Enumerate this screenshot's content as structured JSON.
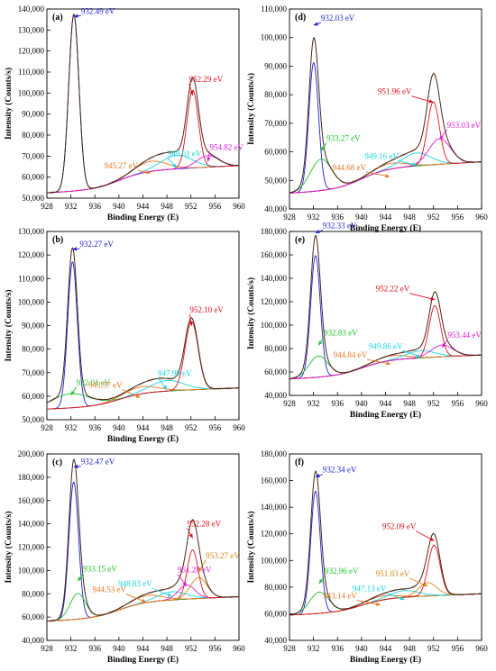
{
  "chart_data": [
    {
      "type": "line",
      "panel_label": "(a)",
      "xlabel": "Binding Energy (E)",
      "ylabel": "Intensity (Counts/s)",
      "xlim": [
        928,
        960
      ],
      "ylim": [
        50000,
        140000
      ],
      "x_ticks": [
        "928",
        "932",
        "936",
        "940",
        "944",
        "948",
        "952",
        "956",
        "960"
      ],
      "y_ticks": [
        "50,000",
        "60,000",
        "70,000",
        "80,000",
        "90,000",
        "100,000",
        "110,000",
        "120,000",
        "130,000",
        "140,000"
      ],
      "peaks": [
        {
          "label": "932.49 eV",
          "x": 932.49,
          "y": 136000,
          "color": "#1f1fd6",
          "w": 0.85,
          "h": 84000
        },
        {
          "label": "945.27 eV",
          "x": 945.27,
          "y": 61500,
          "color": "#e87722",
          "w": 2.6,
          "h": 4800
        },
        {
          "label": "949.61 eV",
          "x": 949.61,
          "y": 64000,
          "color": "#19d3e0",
          "w": 2.6,
          "h": 6500
        },
        {
          "label": "952.29 eV",
          "x": 952.29,
          "y": 98500,
          "color": "#e0101b",
          "w": 0.95,
          "h": 37000
        },
        {
          "label": "954.82 eV",
          "x": 954.82,
          "y": 67000,
          "color": "#e01bd6",
          "w": 1.8,
          "h": 5500
        }
      ],
      "baseline": {
        "start": 52500,
        "end": 65500
      }
    },
    {
      "type": "line",
      "panel_label": "(b)",
      "xlabel": "Binding Energy (E)",
      "ylabel": "Intensity (Counts/s)",
      "xlim": [
        928,
        960
      ],
      "ylim": [
        50000,
        130000
      ],
      "x_ticks": [
        "928",
        "932",
        "936",
        "940",
        "944",
        "948",
        "952",
        "956",
        "960"
      ],
      "y_ticks": [
        "50,000",
        "60,000",
        "70,000",
        "80,000",
        "90,000",
        "100,000",
        "110,000",
        "120,000",
        "130,000"
      ],
      "peaks": [
        {
          "label": "932.27 eV",
          "x": 932.27,
          "y": 122000,
          "color": "#1f1fd6",
          "w": 0.8,
          "h": 62000
        },
        {
          "label": "932.01 eV",
          "x": 932.01,
          "y": 60000,
          "color": "#22c22e",
          "w": 3.2,
          "h": 6000
        },
        {
          "label": "943.57 eV",
          "x": 943.57,
          "y": 59000,
          "color": "#e87722",
          "w": 2.8,
          "h": 3000
        },
        {
          "label": "947.99 eV",
          "x": 947.99,
          "y": 62500,
          "color": "#19d3e0",
          "w": 2.8,
          "h": 4500
        },
        {
          "label": "952.10 eV",
          "x": 952.1,
          "y": 89500,
          "color": "#e0101b",
          "w": 1.1,
          "h": 29000
        }
      ],
      "baseline": {
        "start": 54500,
        "end": 63500
      }
    },
    {
      "type": "line",
      "panel_label": "(c)",
      "xlabel": "Binding Energy (E)",
      "ylabel": "Intensity (Counts/s)",
      "xlim": [
        928,
        960
      ],
      "ylim": [
        40000,
        200000
      ],
      "x_ticks": [
        "928",
        "932",
        "936",
        "940",
        "944",
        "948",
        "952",
        "956",
        "960"
      ],
      "y_ticks": [
        "40,000",
        "60,000",
        "80,000",
        "100,000",
        "120,000",
        "140,000",
        "160,000",
        "180,000",
        "200,000"
      ],
      "peaks": [
        {
          "label": "932.47 eV",
          "x": 932.47,
          "y": 188000,
          "color": "#1f1fd6",
          "w": 0.8,
          "h": 118000
        },
        {
          "label": "933.15 eV",
          "x": 933.15,
          "y": 90000,
          "color": "#22c22e",
          "w": 1.3,
          "h": 22000
        },
        {
          "label": "944.53 eV",
          "x": 944.53,
          "y": 72000,
          "color": "#e87722",
          "w": 2.6,
          "h": 6000
        },
        {
          "label": "948.83 eV",
          "x": 948.83,
          "y": 77000,
          "color": "#19d3e0",
          "w": 2.4,
          "h": 7000
        },
        {
          "label": "951.28 eV",
          "x": 951.28,
          "y": 86000,
          "color": "#e01bd6",
          "w": 1.4,
          "h": 12000
        },
        {
          "label": "952.28 eV",
          "x": 952.28,
          "y": 127000,
          "color": "#e0101b",
          "w": 0.9,
          "h": 42000
        },
        {
          "label": "953.27 eV",
          "x": 953.27,
          "y": 98000,
          "color": "#d18a1a",
          "w": 1.4,
          "h": 18000
        }
      ],
      "baseline": {
        "start": 56500,
        "end": 77500
      }
    },
    {
      "type": "line",
      "panel_label": "(d)",
      "xlabel": "Binding Energy (E)",
      "ylabel": "Intensity (Counts/s)",
      "xlim": [
        928,
        960
      ],
      "ylim": [
        40000,
        110000
      ],
      "x_ticks": [
        "928",
        "932",
        "936",
        "940",
        "944",
        "948",
        "952",
        "956",
        "960"
      ],
      "y_ticks": [
        "40,000",
        "50,000",
        "60,000",
        "70,000",
        "80,000",
        "90,000",
        "100,000",
        "110,000"
      ],
      "peaks": [
        {
          "label": "932.03 eV",
          "x": 932.03,
          "y": 104000,
          "color": "#1f1fd6",
          "w": 0.8,
          "h": 45000
        },
        {
          "label": "933.27 eV",
          "x": 933.27,
          "y": 60000,
          "color": "#22c22e",
          "w": 1.8,
          "h": 11000
        },
        {
          "label": "944.68 eV",
          "x": 944.68,
          "y": 51000,
          "color": "#e87722",
          "w": 2.5,
          "h": 2000
        },
        {
          "label": "949.16 eV",
          "x": 949.16,
          "y": 55000,
          "color": "#19d3e0",
          "w": 2.4,
          "h": 4500
        },
        {
          "label": "951.96 eV",
          "x": 951.96,
          "y": 77000,
          "color": "#e0101b",
          "w": 1.0,
          "h": 22000
        },
        {
          "label": "953.03 eV",
          "x": 953.03,
          "y": 64000,
          "color": "#e01bd6",
          "w": 1.8,
          "h": 9000
        }
      ],
      "baseline": {
        "start": 45500,
        "end": 56500
      }
    },
    {
      "type": "line",
      "panel_label": "(e)",
      "xlabel": "Binding Energy (E)",
      "ylabel": "Intensity (Counts/s)",
      "xlim": [
        928,
        960
      ],
      "ylim": [
        40000,
        180000
      ],
      "x_ticks": [
        "928",
        "932",
        "936",
        "940",
        "944",
        "948",
        "952",
        "956",
        "960"
      ],
      "y_ticks": [
        "40,000",
        "60,000",
        "80,000",
        "100,000",
        "120,000",
        "140,000",
        "160,000",
        "180,000"
      ],
      "peaks": [
        {
          "label": "932.33 eV",
          "x": 932.33,
          "y": 178000,
          "color": "#1f1fd6",
          "w": 0.8,
          "h": 104000
        },
        {
          "label": "932.83 eV",
          "x": 932.83,
          "y": 82000,
          "color": "#22c22e",
          "w": 1.6,
          "h": 18000
        },
        {
          "label": "944.84 eV",
          "x": 944.84,
          "y": 66000,
          "color": "#e87722",
          "w": 2.6,
          "h": 4000
        },
        {
          "label": "949.86 eV",
          "x": 949.86,
          "y": 72000,
          "color": "#19d3e0",
          "w": 2.4,
          "h": 6000
        },
        {
          "label": "952.22 eV",
          "x": 952.22,
          "y": 121000,
          "color": "#e0101b",
          "w": 0.95,
          "h": 44000
        },
        {
          "label": "953.44 eV",
          "x": 953.44,
          "y": 80000,
          "color": "#e01bd6",
          "w": 1.8,
          "h": 10000
        }
      ],
      "baseline": {
        "start": 54000,
        "end": 74500
      }
    },
    {
      "type": "line",
      "panel_label": "(f)",
      "xlabel": "Binding Energy (E)",
      "ylabel": "Intensity (Counts/s)",
      "xlim": [
        928,
        960
      ],
      "ylim": [
        40000,
        180000
      ],
      "x_ticks": [
        "928",
        "932",
        "936",
        "940",
        "944",
        "948",
        "952",
        "956",
        "960"
      ],
      "y_ticks": [
        "40,000",
        "60,000",
        "80,000",
        "100,000",
        "120,000",
        "140,000",
        "160,000",
        "180,000"
      ],
      "peaks": [
        {
          "label": "932.34 eV",
          "x": 932.34,
          "y": 162000,
          "color": "#1f1fd6",
          "w": 0.8,
          "h": 92000
        },
        {
          "label": "932.96 eV",
          "x": 932.96,
          "y": 82000,
          "color": "#22c22e",
          "w": 1.6,
          "h": 16000
        },
        {
          "label": "943.14 eV",
          "x": 943.14,
          "y": 66000,
          "color": "#e87722",
          "w": 2.6,
          "h": 3000
        },
        {
          "label": "947.13 eV",
          "x": 947.13,
          "y": 70000,
          "color": "#19d3e0",
          "w": 2.4,
          "h": 5000
        },
        {
          "label": "951.03 eV",
          "x": 951.03,
          "y": 80000,
          "color": "#d18a1a",
          "w": 1.5,
          "h": 10000
        },
        {
          "label": "952.09 eV",
          "x": 952.09,
          "y": 114000,
          "color": "#e0101b",
          "w": 1.0,
          "h": 38000
        }
      ],
      "baseline": {
        "start": 59000,
        "end": 75000
      }
    }
  ]
}
